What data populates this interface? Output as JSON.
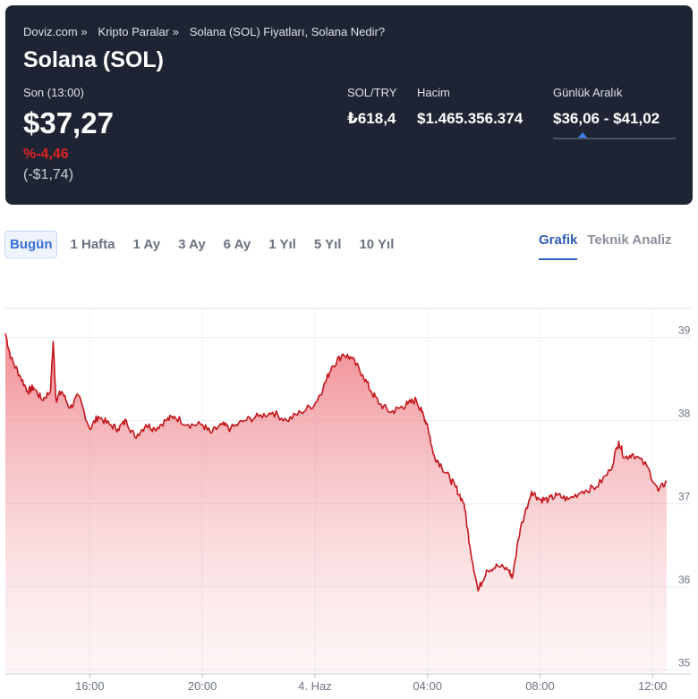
{
  "breadcrumb": [
    {
      "label": "Doviz.com",
      "sep": "»"
    },
    {
      "label": "Kripto Paralar",
      "sep": "»"
    },
    {
      "label": "Solana (SOL) Fiyatları, Solana Nedir?",
      "sep": ""
    }
  ],
  "title": "Solana (SOL)",
  "last": {
    "label": "Son (13:00)",
    "price": "$37,27",
    "change_pct": "%-4,46",
    "change_abs": "(-$1,74)"
  },
  "stats": {
    "soltry": {
      "label": "SOL/TRY",
      "value": "₺618,4"
    },
    "hacim": {
      "label": "Hacim",
      "value": "$1.465.356.374"
    },
    "range": {
      "label": "Günlük Aralık",
      "value": "$36,06 - $41,02",
      "position": 0.24
    }
  },
  "periods": [
    "Bugün",
    "1 Hafta",
    "1 Ay",
    "3 Ay",
    "6 Ay",
    "1 Yıl",
    "5 Yıl",
    "10 Yıl"
  ],
  "active_period": 0,
  "views": [
    "Grafik",
    "Teknik Analiz"
  ],
  "active_view": 0,
  "colors": {
    "header_bg": "#1e2433",
    "negative": "#e02424",
    "accent": "#2f5fb3",
    "line": "#c4161c"
  },
  "chart_data": {
    "type": "area",
    "x_ticks": [
      "16:00",
      "20:00",
      "4. Haz",
      "04:00",
      "08:00",
      "12:00"
    ],
    "y_ticks": [
      35,
      36,
      37,
      38,
      39
    ],
    "ylim": [
      34.95,
      39.35
    ],
    "t_range": [
      0,
      23.5
    ],
    "x_tick_positions": [
      3,
      7,
      11,
      15,
      19,
      23
    ],
    "series": [
      {
        "t": [
          0,
          0.2,
          0.5,
          0.8,
          1.0,
          1.3,
          1.6,
          1.7,
          1.8,
          2.0,
          2.3,
          2.6,
          3.0,
          3.3,
          3.7,
          4.0,
          4.3,
          4.6,
          5.0,
          5.3,
          5.7,
          6.0,
          6.5,
          7.0,
          7.3,
          7.7,
          8.0,
          8.5,
          9.0,
          9.5,
          10.0,
          10.5,
          11.0,
          11.3,
          11.6,
          12.0,
          12.3,
          12.7,
          13.0,
          13.3,
          13.7,
          14.0,
          14.3,
          14.6,
          14.8,
          15.0,
          15.2,
          15.5,
          15.8,
          16.0,
          16.3,
          16.5,
          16.8,
          17.1,
          17.5,
          17.9,
          18.0,
          18.3,
          18.7,
          19.0,
          19.3,
          19.6,
          20.0,
          20.5,
          21.0,
          21.5,
          21.8,
          22.0,
          22.3,
          22.8,
          23.2,
          23.5
        ],
        "y": [
          39.05,
          38.75,
          38.55,
          38.35,
          38.4,
          38.25,
          38.35,
          38.95,
          38.25,
          38.35,
          38.15,
          38.3,
          37.9,
          38.05,
          37.95,
          37.9,
          38.0,
          37.8,
          37.95,
          37.9,
          38.0,
          38.05,
          37.95,
          37.95,
          37.85,
          37.95,
          37.9,
          38.0,
          38.05,
          38.1,
          38.0,
          38.1,
          38.2,
          38.4,
          38.65,
          38.8,
          38.75,
          38.55,
          38.35,
          38.2,
          38.1,
          38.15,
          38.2,
          38.25,
          38.1,
          37.95,
          37.6,
          37.45,
          37.3,
          37.2,
          37.0,
          36.5,
          35.95,
          36.2,
          36.25,
          36.2,
          36.1,
          36.7,
          37.15,
          37.05,
          37.05,
          37.1,
          37.05,
          37.15,
          37.2,
          37.4,
          37.75,
          37.55,
          37.6,
          37.45,
          37.15,
          37.27
        ]
      }
    ]
  }
}
